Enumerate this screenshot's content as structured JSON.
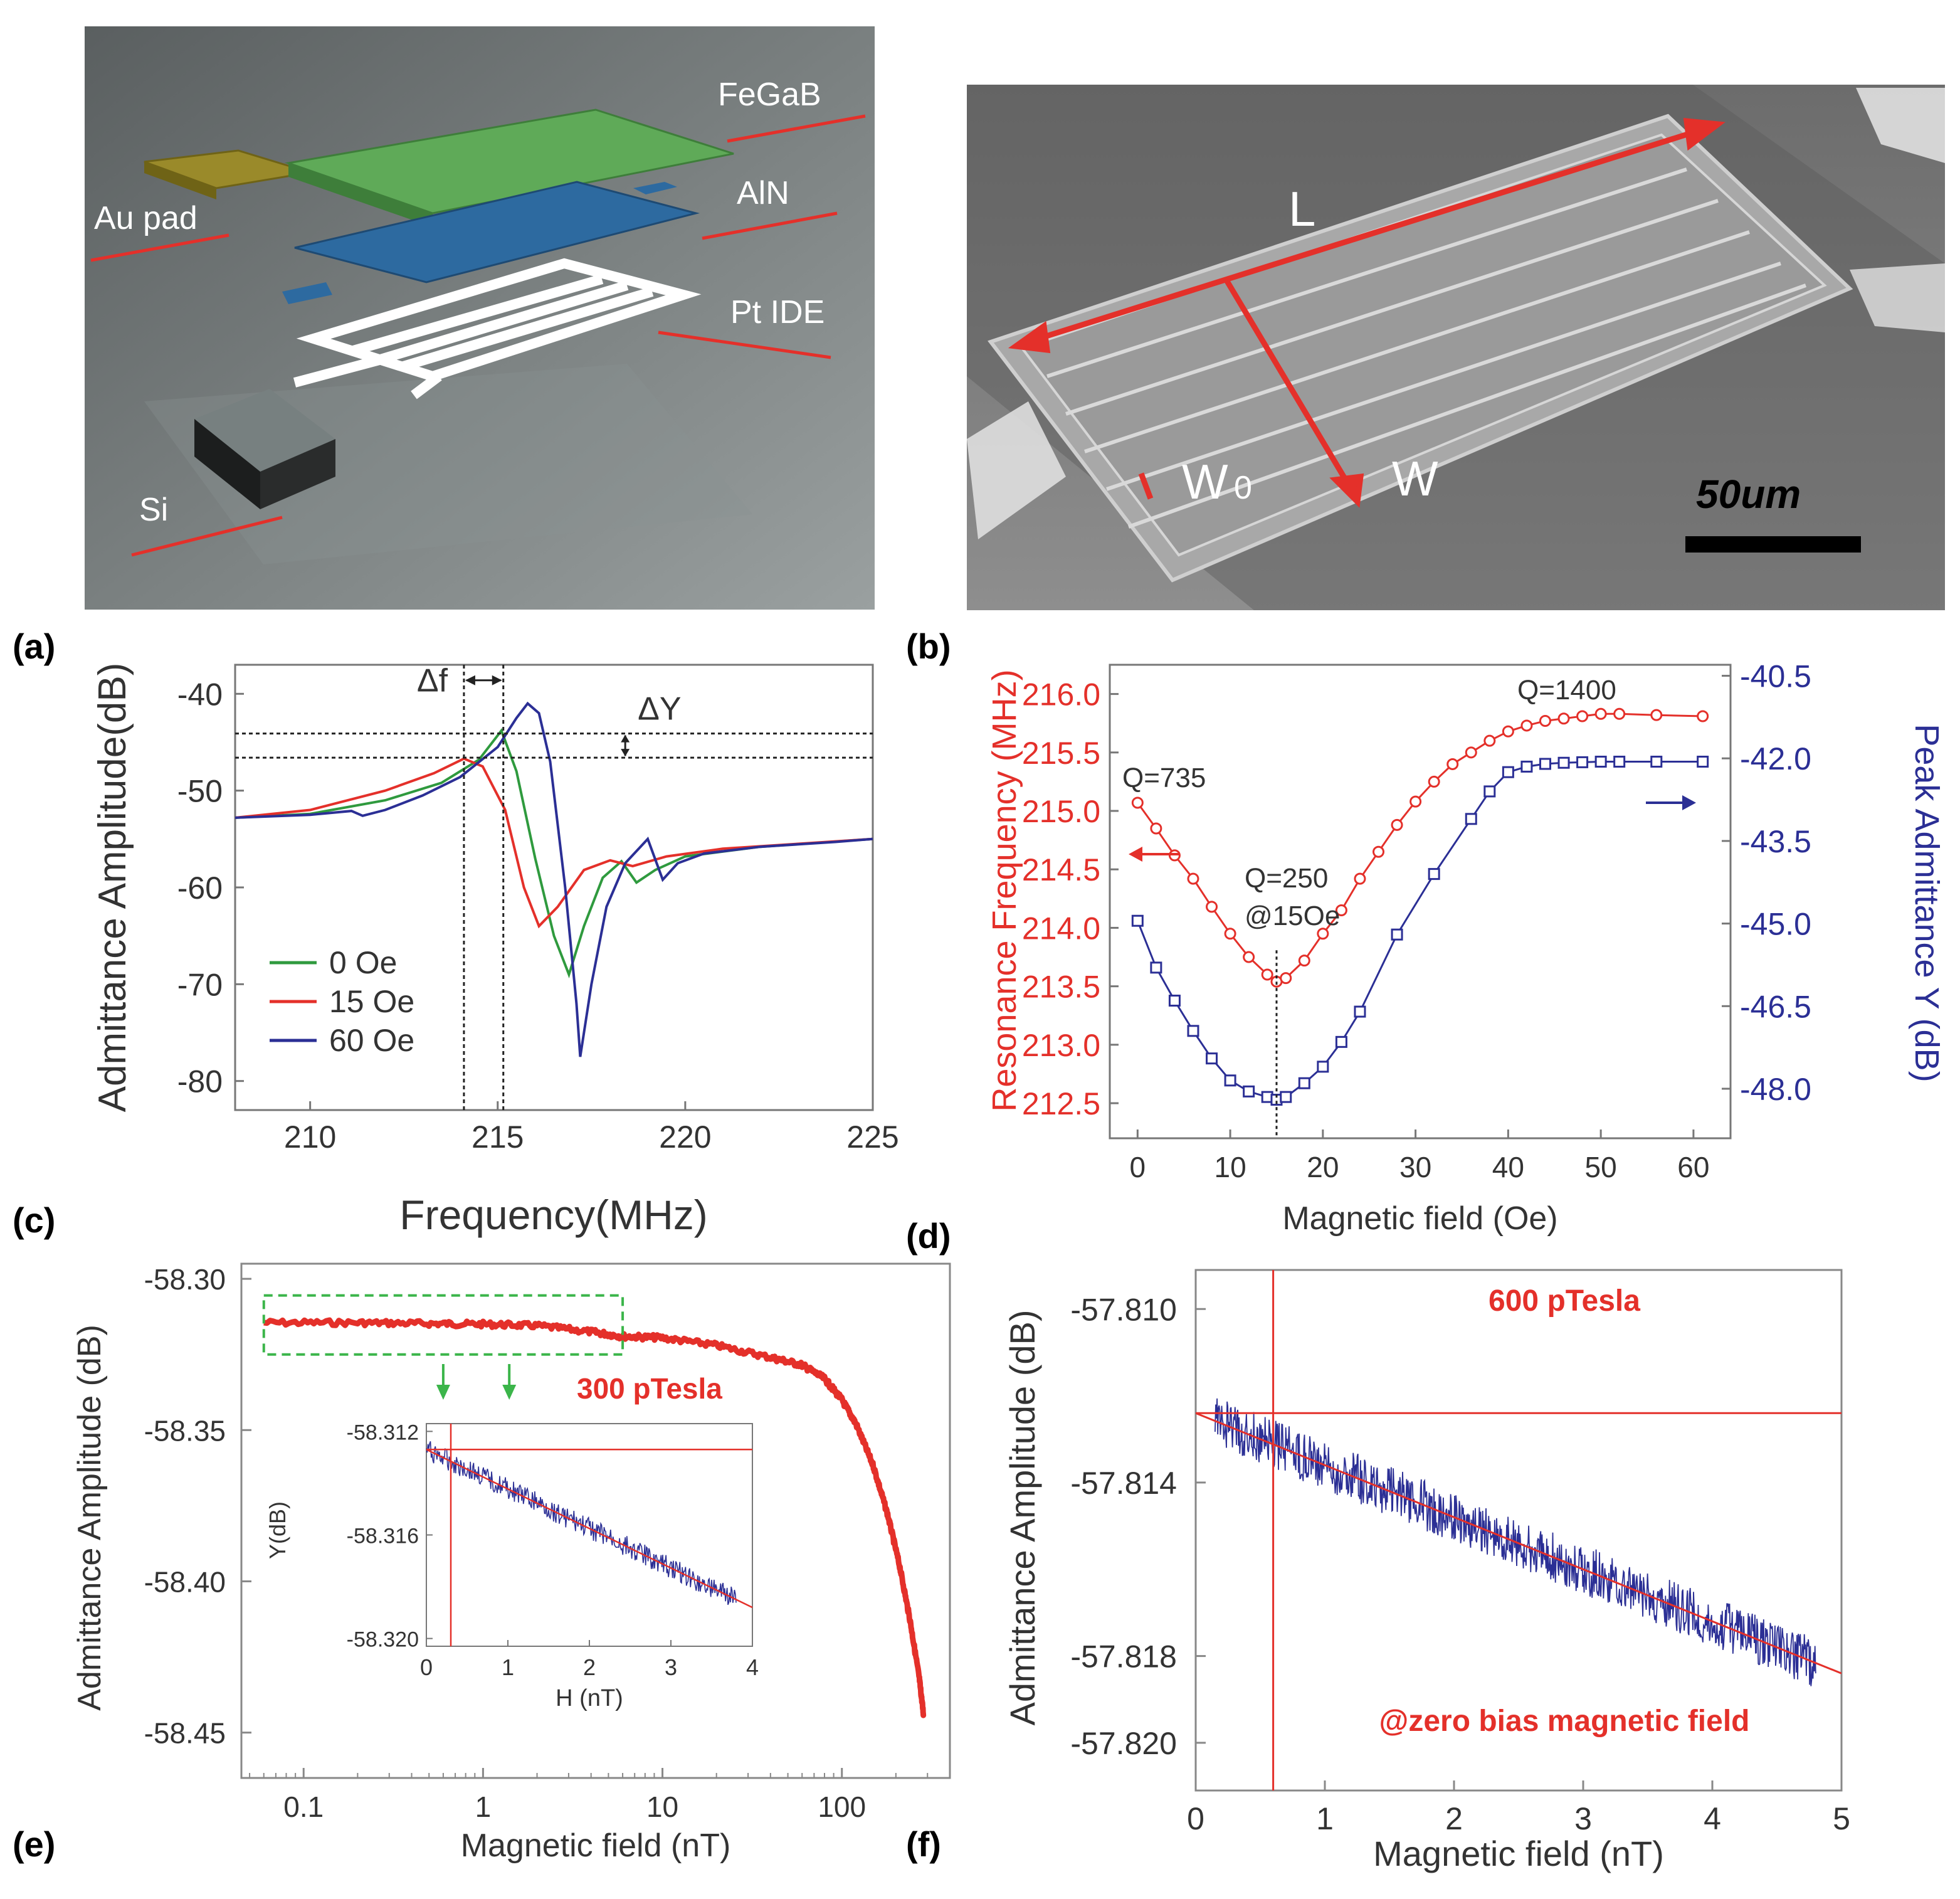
{
  "panel_letters": [
    "(a)",
    "(b)",
    "(c)",
    "(d)",
    "(e)",
    "(f)"
  ],
  "colors": {
    "red": "#e4302a",
    "blue": "#2b2f95",
    "green": "#2f9a3e",
    "dash_green": "#3bb54a",
    "bg_grey": "#6f7475",
    "sem_grey": "#8a8a8a"
  },
  "panel_a": {
    "type": "illustration",
    "layers": [
      "FeGaB",
      "AlN",
      "Pt IDE",
      "Au pad",
      "Si"
    ]
  },
  "panel_b": {
    "type": "sem-image",
    "labels": {
      "length": "L",
      "width": "W",
      "finger_width": "W",
      "finger_width_sub": "0",
      "scale": "50um"
    }
  },
  "chart_data": [
    {
      "id": "chart_c",
      "type": "line",
      "xlabel": "Frequency(MHz)",
      "ylabel": "Admittance Amplitude(dB)",
      "xlim": [
        208,
        225
      ],
      "ylim": [
        -83,
        -37
      ],
      "xticks": [
        210,
        215,
        220,
        225
      ],
      "yticks": [
        -40,
        -50,
        -60,
        -70,
        -80
      ],
      "series": [
        {
          "name": "0 Oe",
          "color": "#2f9a3e",
          "points": [
            [
              208,
              -52.8
            ],
            [
              210,
              -52.4
            ],
            [
              212,
              -51
            ],
            [
              213.5,
              -49.2
            ],
            [
              214.5,
              -46.8
            ],
            [
              215.1,
              -43.8
            ],
            [
              215.5,
              -48
            ],
            [
              216,
              -57
            ],
            [
              216.5,
              -65
            ],
            [
              216.9,
              -69
            ],
            [
              217.3,
              -64
            ],
            [
              217.8,
              -59
            ],
            [
              218.3,
              -57.3
            ],
            [
              218.7,
              -59.5
            ],
            [
              219.2,
              -58.2
            ],
            [
              220,
              -56.8
            ],
            [
              222,
              -55.8
            ],
            [
              225,
              -55
            ]
          ]
        },
        {
          "name": "15  Oe",
          "color": "#e4302a",
          "points": [
            [
              208,
              -52.8
            ],
            [
              210,
              -52
            ],
            [
              212,
              -50
            ],
            [
              213.3,
              -48.2
            ],
            [
              214.1,
              -46.7
            ],
            [
              214.6,
              -47.5
            ],
            [
              215.2,
              -52
            ],
            [
              215.7,
              -60
            ],
            [
              216.1,
              -64
            ],
            [
              216.6,
              -62
            ],
            [
              217.3,
              -58.2
            ],
            [
              218,
              -57.2
            ],
            [
              218.6,
              -57.8
            ],
            [
              219.5,
              -56.8
            ],
            [
              221,
              -56
            ],
            [
              223,
              -55.5
            ],
            [
              225,
              -55
            ]
          ]
        },
        {
          "name": "60  Oe",
          "color": "#2b2f95",
          "points": [
            [
              208,
              -52.8
            ],
            [
              210,
              -52.5
            ],
            [
              211.1,
              -52.1
            ],
            [
              211.4,
              -52.6
            ],
            [
              212,
              -52
            ],
            [
              213,
              -50.5
            ],
            [
              214,
              -48.6
            ],
            [
              215,
              -45.5
            ],
            [
              215.5,
              -42.5
            ],
            [
              215.8,
              -41
            ],
            [
              216.1,
              -42
            ],
            [
              216.4,
              -47
            ],
            [
              216.8,
              -60
            ],
            [
              217.1,
              -72
            ],
            [
              217.2,
              -77.5
            ],
            [
              217.5,
              -70
            ],
            [
              217.9,
              -62
            ],
            [
              218.4,
              -57.5
            ],
            [
              219,
              -55
            ],
            [
              219.4,
              -59.2
            ],
            [
              219.8,
              -57.5
            ],
            [
              220.5,
              -56.5
            ],
            [
              222,
              -55.8
            ],
            [
              224,
              -55.3
            ],
            [
              225,
              -55
            ]
          ]
        }
      ],
      "annotations": {
        "delta_f": "Δf",
        "delta_y": "ΔY",
        "f_lines": [
          214.1,
          215.15
        ],
        "y_lines": [
          -44.1,
          -46.6
        ]
      }
    },
    {
      "id": "chart_d",
      "type": "line",
      "xlabel": "Magnetic field (Oe)",
      "ylabel_left": "Resonance Frequency (MHz)",
      "ylabel_right": "Peak Admittance Y (dB)",
      "xlim": [
        -3,
        64
      ],
      "ylim_left": [
        212.2,
        216.25
      ],
      "ylim_right": [
        -48.9,
        -40.3
      ],
      "xticks": [
        0,
        10,
        20,
        30,
        40,
        50,
        60
      ],
      "yticks_left": [
        216.0,
        215.5,
        215.0,
        214.5,
        214.0,
        213.5,
        213.0,
        212.5
      ],
      "yticks_right": [
        -40.5,
        -42.0,
        -43.5,
        -45.0,
        -46.5,
        -48.0
      ],
      "yticklabels_left": [
        "216.0",
        "215.5",
        "215.0",
        "214.5",
        "214.0",
        "213.5",
        "213.0",
        "212.5"
      ],
      "yticklabels_right": [
        "-40.5",
        "-42.0",
        "-43.5",
        "-45.0",
        "-46.5",
        "-48.0"
      ],
      "series": [
        {
          "axis": "left",
          "color": "#e4302a",
          "marker": "circle",
          "x": [
            0,
            2,
            4,
            6,
            8,
            10,
            12,
            14,
            15,
            16,
            18,
            20,
            22,
            24,
            26,
            28,
            30,
            32,
            34,
            36,
            38,
            40,
            42,
            44,
            46,
            48,
            50,
            52,
            56,
            61
          ],
          "values": [
            215.07,
            214.85,
            214.62,
            214.42,
            214.18,
            213.95,
            213.75,
            213.6,
            213.54,
            213.57,
            213.72,
            213.95,
            214.15,
            214.42,
            214.65,
            214.88,
            215.08,
            215.25,
            215.4,
            215.5,
            215.6,
            215.68,
            215.73,
            215.77,
            215.79,
            215.81,
            215.83,
            215.83,
            215.82,
            215.81
          ]
        },
        {
          "axis": "right",
          "color": "#2b2f95",
          "marker": "square",
          "x": [
            0,
            2,
            4,
            6,
            8,
            10,
            12,
            14,
            15,
            16,
            18,
            20,
            22,
            24,
            28,
            32,
            36,
            38,
            40,
            42,
            44,
            46,
            48,
            50,
            52,
            56,
            61
          ],
          "values": [
            -44.95,
            -45.8,
            -46.4,
            -46.95,
            -47.45,
            -47.85,
            -48.05,
            -48.15,
            -48.2,
            -48.15,
            -47.9,
            -47.6,
            -47.15,
            -46.6,
            -45.2,
            -44.1,
            -43.1,
            -42.6,
            -42.25,
            -42.15,
            -42.1,
            -42.08,
            -42.07,
            -42.06,
            -42.06,
            -42.06,
            -42.06
          ]
        }
      ],
      "annotations": {
        "q_left": "Q=735",
        "q_min": "Q=250",
        "q_min_at": "@15Oe",
        "q_right": "Q=1400",
        "vline_x": 15
      }
    },
    {
      "id": "chart_e",
      "type": "line",
      "xscale": "log",
      "xlabel": "Magnetic field (nT)",
      "ylabel": "Admittance Amplitude (dB)",
      "xlim": [
        0.045,
        400
      ],
      "ylim": [
        -58.465,
        -58.295
      ],
      "xticks": [
        0.1,
        1,
        10,
        100
      ],
      "xticklabels": [
        "0.1",
        "1",
        "10",
        "100"
      ],
      "yticks": [
        -58.3,
        -58.35,
        -58.4,
        -58.45
      ],
      "yticklabels": [
        "-58.30",
        "-58.35",
        "-58.40",
        "-58.45"
      ],
      "annotation": "300 pTesla",
      "series": [
        {
          "color": "#e4302a",
          "points": [
            [
              0.06,
              -58.3145
            ],
            [
              0.2,
              -58.3145
            ],
            [
              0.5,
              -58.3148
            ],
            [
              1,
              -58.315
            ],
            [
              2,
              -58.3155
            ],
            [
              4,
              -58.3175
            ],
            [
              6,
              -58.319
            ],
            [
              10,
              -58.3195
            ],
            [
              20,
              -58.322
            ],
            [
              40,
              -58.326
            ],
            [
              60,
              -58.3285
            ],
            [
              80,
              -58.333
            ],
            [
              100,
              -58.34
            ],
            [
              120,
              -58.348
            ],
            [
              150,
              -58.362
            ],
            [
              180,
              -58.378
            ],
            [
              210,
              -58.395
            ],
            [
              240,
              -58.413
            ],
            [
              270,
              -58.432
            ],
            [
              285,
              -58.444
            ]
          ]
        }
      ],
      "inset": {
        "xlabel": "H (nT)",
        "ylabel": "Y(dB)",
        "xlim": [
          0,
          4
        ],
        "ylim": [
          -58.3203,
          -58.3117
        ],
        "xticks": [
          0,
          1,
          2,
          3,
          4
        ],
        "yticks": [
          -58.312,
          -58.316,
          -58.32
        ],
        "yticklabels": [
          "-58.312",
          "-58.316",
          "-58.320"
        ],
        "hline_y": -58.3127,
        "vline_x": 0.3,
        "fit": [
          [
            0,
            -58.3127
          ],
          [
            4,
            -58.3188
          ]
        ],
        "noise_x": [
          0,
          3.8
        ]
      }
    },
    {
      "id": "chart_f",
      "type": "line",
      "xlabel": "Magnetic field (nT)",
      "ylabel": "Admittance Amplitude (dB)",
      "xlim": [
        0,
        5
      ],
      "ylim": [
        -57.8211,
        -57.8091
      ],
      "xticks": [
        0,
        1,
        2,
        3,
        4,
        5
      ],
      "yticks": [
        -57.81,
        -57.814,
        -57.818,
        -57.82
      ],
      "yticklabels": [
        "-57.810",
        "-57.814",
        "-57.818",
        "-57.820"
      ],
      "annotation_top": "600 pTesla",
      "annotation_bottom": "@zero bias magnetic field",
      "hline_y": -57.8124,
      "vline_x": 0.6,
      "fit": [
        [
          0,
          -57.8124
        ],
        [
          5,
          -57.8184
        ]
      ],
      "noise_x": [
        0.15,
        4.8
      ]
    }
  ]
}
